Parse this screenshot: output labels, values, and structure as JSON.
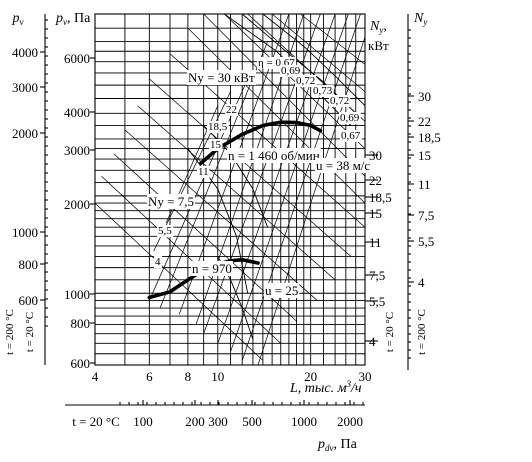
{
  "chart_data": {
    "type": "line",
    "x_axis": {
      "label": "L, тыс. м",
      "label_sup": "3",
      "label_suffix": "/ч",
      "scale": "log",
      "ticks": [
        "4",
        "6",
        "8",
        "10",
        "20",
        "30"
      ]
    },
    "pv_axis": {
      "label": "pv",
      "ticks": [
        "4000",
        "3000",
        "2000",
        "1000",
        "800",
        "600"
      ]
    },
    "pv_t20_axis": {
      "label": "pv, Па",
      "ticks": [
        "6000",
        "4000",
        "3000",
        "2000",
        "1000",
        "800",
        "600"
      ],
      "temperature": "t = 20 °C"
    },
    "pv_t200_label": "t = 200 °C",
    "ny_t20_axis": {
      "label": "Ny,",
      "unit": "кВт",
      "ticks": [
        "30",
        "22",
        "18,5",
        "15",
        "11",
        "7,5",
        "5,5",
        "4"
      ],
      "temperature": "t = 20 °C"
    },
    "ny_t200_axis": {
      "label": "Ny",
      "ticks": [
        "30",
        "22",
        "18,5",
        "15",
        "11",
        "7,5",
        "5,5",
        "4"
      ],
      "temperature": "t = 200 °C"
    },
    "pdv_axis": {
      "label": "pdv, Па",
      "prefix": "t = 20 °C",
      "ticks": [
        "100",
        "200",
        "300",
        "500",
        "1000",
        "2000"
      ]
    },
    "series": [
      {
        "name": "n = 1 460 об/мин",
        "x": [
          8.8,
          10,
          12,
          14,
          16,
          18,
          20,
          21.5
        ],
        "y": [
          2520,
          2800,
          3100,
          3300,
          3380,
          3370,
          3300,
          3180
        ]
      },
      {
        "name": "n = 970",
        "x": [
          6,
          7,
          8,
          9,
          10,
          11,
          12,
          13.5
        ],
        "y": [
          970,
          1010,
          1100,
          1180,
          1230,
          1260,
          1270,
          1240
        ]
      }
    ],
    "annotations": {
      "power_lines": [
        "Ny = 30 кВт",
        "22",
        "18,5",
        "15",
        "11",
        "Ny = 7,5",
        "5,5",
        "4"
      ],
      "efficiency_lines": [
        "η = 0,67",
        "0,69",
        "0,72",
        "0,73",
        "0,72",
        "0,69",
        "0,67"
      ],
      "velocity_lines": [
        "u = 38 м/с",
        "u = 25"
      ]
    }
  }
}
